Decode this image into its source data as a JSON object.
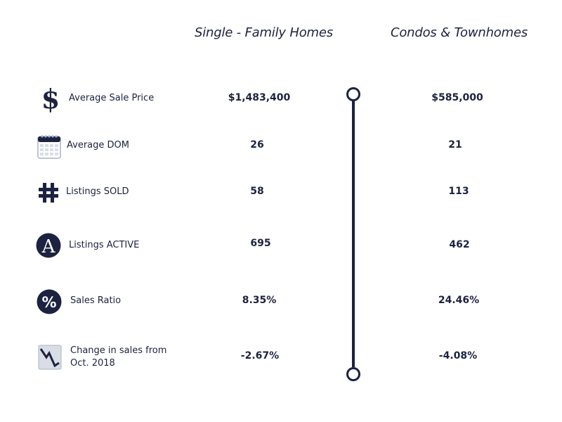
{
  "headers": {
    "single_family": "Single - Family Homes",
    "condos": "Condos & Townhomes"
  },
  "rows": [
    {
      "label": "Average Sale Price",
      "icon": "dollar-icon",
      "single_family": "$1,483,400",
      "condos": "$585,000"
    },
    {
      "label": "Average DOM",
      "icon": "calendar-icon",
      "single_family": "26",
      "condos": "21"
    },
    {
      "label": "Listings SOLD",
      "icon": "hash-icon",
      "single_family": "58",
      "condos": "113"
    },
    {
      "label": "Listings ACTIVE",
      "icon": "letter-a-icon",
      "single_family": "695",
      "condos": "462"
    },
    {
      "label": "Sales Ratio",
      "icon": "percent-icon",
      "single_family": "8.35%",
      "condos": "24.46%"
    },
    {
      "label_line1": "Change in sales from",
      "label_line2": "Oct. 2018",
      "icon": "declining-chart-icon",
      "single_family": "-2.67%",
      "condos": "-4.08%"
    }
  ],
  "colors": {
    "navy": "#1c2240",
    "icon_light": "#d9dee6",
    "icon_mid": "#aab3c2"
  }
}
